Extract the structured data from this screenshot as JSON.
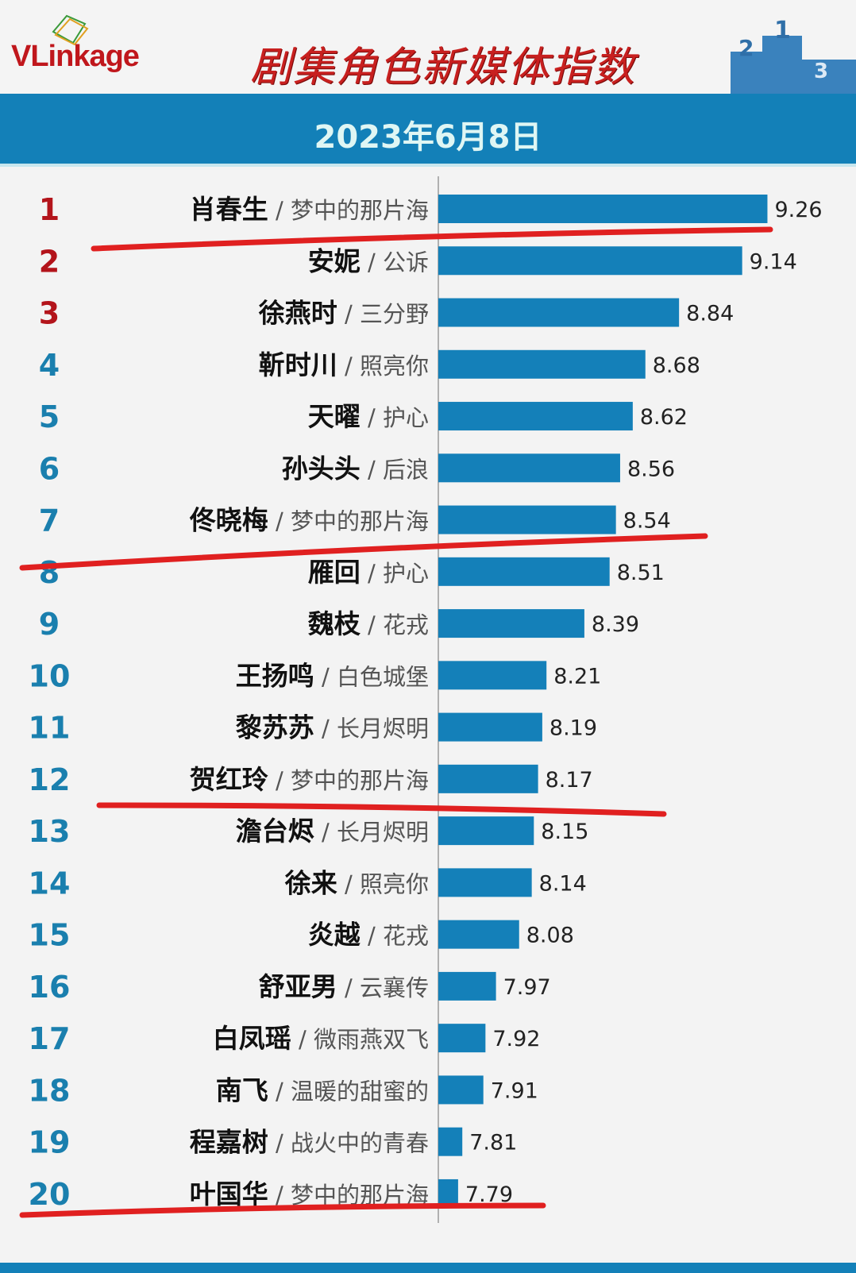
{
  "header": {
    "logo": "VLinkage",
    "title": "剧集角色新媒体指数",
    "date": "2023年6月8日"
  },
  "colors": {
    "bar": "#1480b9",
    "rank_top3": "#b3141b",
    "rank_rest": "#1a7fae",
    "underline": "#e02020",
    "title": "#c8201f"
  },
  "chart_data": {
    "type": "bar",
    "orientation": "horizontal",
    "title": "剧集角色新媒体指数",
    "subtitle": "2023年6月8日",
    "categories": [
      {
        "rank": "1",
        "role": "肖春生",
        "drama": "梦中的那片海"
      },
      {
        "rank": "2",
        "role": "安妮",
        "drama": "公诉"
      },
      {
        "rank": "3",
        "role": "徐燕时",
        "drama": "三分野"
      },
      {
        "rank": "4",
        "role": "靳时川",
        "drama": "照亮你"
      },
      {
        "rank": "5",
        "role": "天曜",
        "drama": "护心"
      },
      {
        "rank": "6",
        "role": "孙头头",
        "drama": "后浪"
      },
      {
        "rank": "7",
        "role": "佟晓梅",
        "drama": "梦中的那片海"
      },
      {
        "rank": "8",
        "role": "雁回",
        "drama": "护心"
      },
      {
        "rank": "9",
        "role": "魏枝",
        "drama": "花戎"
      },
      {
        "rank": "10",
        "role": "王扬鸣",
        "drama": "白色城堡"
      },
      {
        "rank": "11",
        "role": "黎苏苏",
        "drama": "长月烬明"
      },
      {
        "rank": "12",
        "role": "贺红玲",
        "drama": "梦中的那片海"
      },
      {
        "rank": "13",
        "role": "澹台烬",
        "drama": "长月烬明"
      },
      {
        "rank": "14",
        "role": "徐来",
        "drama": "照亮你"
      },
      {
        "rank": "15",
        "role": "炎越",
        "drama": "花戎"
      },
      {
        "rank": "16",
        "role": "舒亚男",
        "drama": "云襄传"
      },
      {
        "rank": "17",
        "role": "白凤瑶",
        "drama": "微雨燕双飞"
      },
      {
        "rank": "18",
        "role": "南飞",
        "drama": "温暖的甜蜜的"
      },
      {
        "rank": "19",
        "role": "程嘉树",
        "drama": "战火中的青春"
      },
      {
        "rank": "20",
        "role": "叶国华",
        "drama": "梦中的那片海"
      }
    ],
    "values": [
      "9.26",
      "9.14",
      "8.84",
      "8.68",
      "8.62",
      "8.56",
      "8.54",
      "8.51",
      "8.39",
      "8.21",
      "8.19",
      "8.17",
      "8.15",
      "8.14",
      "8.08",
      "7.97",
      "7.92",
      "7.91",
      "7.81",
      "7.79"
    ],
    "xlim": [
      7.7,
      9.3
    ],
    "grid": false,
    "annotations": {
      "red_underlines_after_ranks": [
        1,
        7,
        12,
        20
      ]
    }
  }
}
